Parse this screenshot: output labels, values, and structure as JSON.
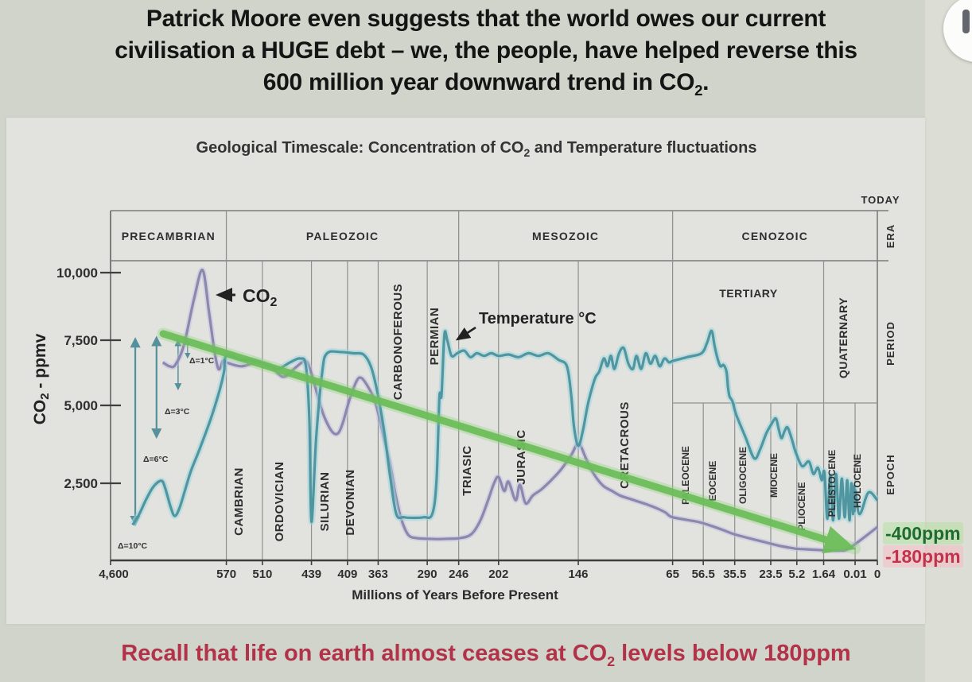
{
  "header": {
    "lines": [
      "Patrick Moore even suggests that the world owes our current",
      "civilisation a HUGE debt – we, the people, have helped reverse this"
    ],
    "line3": {
      "pre": "600 million year downward trend in CO",
      "sub": "2",
      "post": "."
    }
  },
  "chart": {
    "title": {
      "pre": "Geological Timescale: Concentration of CO",
      "sub": "2",
      "post": " and Temperature fluctuations"
    },
    "today_label": "TODAY",
    "side_labels": {
      "era": "ERA",
      "period": "PERIOD",
      "epoch": "EPOCH"
    },
    "y_axis": {
      "title": {
        "pre": "CO",
        "sub": "2",
        "post": " - ppmv"
      },
      "ticks": [
        "10,000",
        "7,500",
        "5,000",
        "2,500"
      ]
    },
    "x_axis": {
      "title": "Millions of Years Before Present",
      "ticks": [
        "4,600",
        "570",
        "510",
        "439",
        "409",
        "363",
        "290",
        "246",
        "202",
        "146",
        "65",
        "56.5",
        "35.5",
        "23.5",
        "5.2",
        "1.64",
        "0.01",
        "0"
      ]
    },
    "eras": [
      {
        "label": "PRECAMBRIAN",
        "from": 4600,
        "to": 570
      },
      {
        "label": "PALEOZOIC",
        "from": 570,
        "to": 246
      },
      {
        "label": "MESOZOIC",
        "from": 246,
        "to": 65
      },
      {
        "label": "CENOZOIC",
        "from": 65,
        "to": 0
      }
    ],
    "periods": [
      {
        "label": "CAMBRIAN",
        "from": 570,
        "to": 510
      },
      {
        "label": "ORDOVICIAN",
        "from": 510,
        "to": 439
      },
      {
        "label": "SILURIAN",
        "from": 439,
        "to": 409
      },
      {
        "label": "DEVONIAN",
        "from": 409,
        "to": 363
      },
      {
        "label": "CARBONOFEROUS",
        "from": 363,
        "to": 290
      },
      {
        "label": "PERMIAN",
        "from": 290,
        "to": 246
      },
      {
        "label": "TRIASIC",
        "from": 246,
        "to": 202
      },
      {
        "label": "JURASIC",
        "from": 202,
        "to": 146
      },
      {
        "label": "CRETACROUS",
        "from": 146,
        "to": 65
      },
      {
        "label": "TERTIARY",
        "from": 65,
        "to": 1.64
      },
      {
        "label": "QUATERNARY",
        "from": 1.64,
        "to": 0
      }
    ],
    "epochs": [
      {
        "label": "PALEOCENE",
        "from": 65,
        "to": 56.5
      },
      {
        "label": "EOCENE",
        "from": 56.5,
        "to": 35.5
      },
      {
        "label": "OLIGOCENE",
        "from": 35.5,
        "to": 23.5
      },
      {
        "label": "MIOCENE",
        "from": 23.5,
        "to": 5.2
      },
      {
        "label": "PLIOCENE",
        "from": 5.2,
        "to": 1.64
      },
      {
        "label": "PLEISTOCENE",
        "from": 1.64,
        "to": 0.01
      },
      {
        "label": "HOLOCENE",
        "from": 0.01,
        "to": 0
      }
    ],
    "annotations": {
      "co2_label": {
        "pre": "CO",
        "sub": "2"
      },
      "temp_label": "Temperature °C",
      "ppm_400": "-400ppm",
      "ppm_180": "-180ppm"
    }
  },
  "footer": {
    "pre": "Recall that life on earth almost ceases at CO",
    "sub": "2",
    "post": " levels below 180ppm"
  },
  "chart_data": {
    "type": "line",
    "title": "Geological Timescale: Concentration of CO2 and Temperature fluctuations",
    "xlabel": "Millions of Years Before Present",
    "ylabel": "CO2 - ppmv",
    "x_ticks_mya": [
      4600,
      570,
      510,
      439,
      409,
      363,
      290,
      246,
      202,
      146,
      65,
      56.5,
      35.5,
      23.5,
      5.2,
      1.64,
      0.01,
      0
    ],
    "y_ticks": [
      10000,
      7500,
      5000,
      2500
    ],
    "ylim": [
      0,
      10500
    ],
    "grid": "geological band boundaries",
    "legend_position": "inline labels",
    "series": [
      {
        "name": "CO2 (ppmv)",
        "color": "#8b88ae",
        "points": [
          [
            2780,
            6650
          ],
          [
            2550,
            6500
          ],
          [
            2350,
            6550
          ],
          [
            2050,
            7300
          ],
          [
            1700,
            9000
          ],
          [
            1400,
            10100
          ],
          [
            1180,
            8600
          ],
          [
            1000,
            7200
          ],
          [
            880,
            6500
          ],
          [
            800,
            6400
          ],
          [
            700,
            6700
          ],
          [
            620,
            6700
          ],
          [
            570,
            6650
          ],
          [
            545,
            6500
          ],
          [
            520,
            6650
          ],
          [
            500,
            6550
          ],
          [
            480,
            6100
          ],
          [
            462,
            6450
          ],
          [
            448,
            6700
          ],
          [
            440,
            6300
          ],
          [
            428,
            4600
          ],
          [
            417,
            4100
          ],
          [
            405,
            5300
          ],
          [
            395,
            5950
          ],
          [
            388,
            6050
          ],
          [
            378,
            5700
          ],
          [
            367,
            5100
          ],
          [
            355,
            4000
          ],
          [
            345,
            3100
          ],
          [
            337,
            2100
          ],
          [
            328,
            1300
          ],
          [
            318,
            820
          ],
          [
            305,
            720
          ],
          [
            290,
            700
          ],
          [
            275,
            690
          ],
          [
            260,
            700
          ],
          [
            245,
            720
          ],
          [
            232,
            850
          ],
          [
            222,
            1300
          ],
          [
            213,
            2000
          ],
          [
            207,
            2500
          ],
          [
            202,
            2700
          ],
          [
            198,
            2250
          ],
          [
            195,
            2550
          ],
          [
            190,
            1950
          ],
          [
            187,
            2450
          ],
          [
            183,
            1850
          ],
          [
            178,
            2100
          ],
          [
            172,
            2300
          ],
          [
            165,
            2600
          ],
          [
            158,
            2950
          ],
          [
            151,
            3400
          ],
          [
            147,
            3750
          ],
          [
            144,
            3700
          ],
          [
            140,
            3350
          ],
          [
            135,
            2950
          ],
          [
            130,
            2650
          ],
          [
            124,
            2400
          ],
          [
            117,
            2250
          ],
          [
            110,
            2100
          ],
          [
            102,
            2000
          ],
          [
            94,
            1900
          ],
          [
            86,
            1800
          ],
          [
            78,
            1680
          ],
          [
            71,
            1550
          ],
          [
            65,
            1400
          ],
          [
            58,
            1250
          ],
          [
            50,
            1100
          ],
          [
            43,
            980
          ],
          [
            36,
            850
          ],
          [
            30,
            700
          ],
          [
            25,
            580
          ],
          [
            20,
            500
          ],
          [
            15,
            450
          ],
          [
            10,
            410
          ],
          [
            6,
            380
          ],
          [
            4,
            360
          ],
          [
            2.5,
            340
          ],
          [
            1.5,
            325
          ],
          [
            0.8,
            320
          ],
          [
            0.3,
            400
          ],
          [
            0,
            1080
          ]
        ]
      },
      {
        "name": "Temperature °C (schematic, no numeric scale)",
        "color": "#4f96a1",
        "points": [
          [
            3830,
            1150
          ],
          [
            3600,
            1500
          ],
          [
            3350,
            2000
          ],
          [
            3100,
            2400
          ],
          [
            2830,
            2580
          ],
          [
            2700,
            2350
          ],
          [
            2500,
            1700
          ],
          [
            2360,
            1440
          ],
          [
            2200,
            1700
          ],
          [
            2000,
            2300
          ],
          [
            1800,
            2900
          ],
          [
            1500,
            3600
          ],
          [
            1100,
            4600
          ],
          [
            800,
            5600
          ],
          [
            650,
            6300
          ],
          [
            570,
            6900
          ],
          [
            545,
            6750
          ],
          [
            520,
            6700
          ],
          [
            500,
            6500
          ],
          [
            487,
            6400
          ],
          [
            470,
            6650
          ],
          [
            455,
            6800
          ],
          [
            447,
            6500
          ],
          [
            442,
            4500
          ],
          [
            439,
            1250
          ],
          [
            435,
            4000
          ],
          [
            430,
            6300
          ],
          [
            426,
            7000
          ],
          [
            415,
            7050
          ],
          [
            400,
            7000
          ],
          [
            385,
            6950
          ],
          [
            374,
            6500
          ],
          [
            365,
            5600
          ],
          [
            355,
            4300
          ],
          [
            345,
            2700
          ],
          [
            336,
            1500
          ],
          [
            325,
            1400
          ],
          [
            310,
            1380
          ],
          [
            295,
            1400
          ],
          [
            283,
            1500
          ],
          [
            277,
            2600
          ],
          [
            273,
            5300
          ],
          [
            270,
            5400
          ],
          [
            266,
            7700
          ],
          [
            262,
            7500
          ],
          [
            256,
            6900
          ],
          [
            248,
            7000
          ],
          [
            240,
            7100
          ],
          [
            233,
            6850
          ],
          [
            226,
            7000
          ],
          [
            218,
            6900
          ],
          [
            210,
            7000
          ],
          [
            202,
            6900
          ],
          [
            195,
            6950
          ],
          [
            188,
            6850
          ],
          [
            181,
            7000
          ],
          [
            174,
            6900
          ],
          [
            167,
            7000
          ],
          [
            160,
            6750
          ],
          [
            154,
            6500
          ],
          [
            151,
            5400
          ],
          [
            149,
            4300
          ],
          [
            146,
            3700
          ],
          [
            142,
            4200
          ],
          [
            138,
            5000
          ],
          [
            134,
            5700
          ],
          [
            131,
            6100
          ],
          [
            128,
            6300
          ],
          [
            124,
            6800
          ],
          [
            121,
            6500
          ],
          [
            118,
            6900
          ],
          [
            115,
            6400
          ],
          [
            111,
            7000
          ],
          [
            107,
            7200
          ],
          [
            103,
            6600
          ],
          [
            99,
            6400
          ],
          [
            96,
            6900
          ],
          [
            92,
            6400
          ],
          [
            88,
            7000
          ],
          [
            84,
            6600
          ],
          [
            80,
            6900
          ],
          [
            76,
            6500
          ],
          [
            72,
            6800
          ],
          [
            68,
            6650
          ],
          [
            65,
            6700
          ],
          [
            61,
            6850
          ],
          [
            57,
            7000
          ],
          [
            54,
            7400
          ],
          [
            51,
            7850
          ],
          [
            49,
            7300
          ],
          [
            47,
            6800
          ],
          [
            45,
            6500
          ],
          [
            43,
            6550
          ],
          [
            41,
            6300
          ],
          [
            40,
            5700
          ],
          [
            39,
            5350
          ],
          [
            37,
            5150
          ],
          [
            35,
            4700
          ],
          [
            32,
            4000
          ],
          [
            29,
            3300
          ],
          [
            27,
            3600
          ],
          [
            25,
            4100
          ],
          [
            23,
            4400
          ],
          [
            20,
            4580
          ],
          [
            18,
            4250
          ],
          [
            16,
            3950
          ],
          [
            14,
            4150
          ],
          [
            12,
            4300
          ],
          [
            10,
            4100
          ],
          [
            8,
            3800
          ],
          [
            6,
            3500
          ],
          [
            4.5,
            3050
          ],
          [
            3.6,
            3200
          ],
          [
            3,
            2800
          ],
          [
            2.4,
            3000
          ],
          [
            1.9,
            2600
          ],
          [
            1.6,
            2850
          ],
          [
            1.45,
            1350
          ],
          [
            1.3,
            2750
          ],
          [
            1.15,
            1300
          ],
          [
            1,
            2800
          ],
          [
            0.85,
            1350
          ],
          [
            0.7,
            2650
          ],
          [
            0.55,
            1400
          ],
          [
            0.42,
            2600
          ],
          [
            0.3,
            1300
          ],
          [
            0.2,
            2500
          ],
          [
            0.12,
            1500
          ],
          [
            0.07,
            2400
          ],
          [
            0.04,
            1600
          ],
          [
            0.02,
            2300
          ],
          [
            0.008,
            1500
          ],
          [
            0.004,
            2200
          ],
          [
            0,
            1950
          ]
        ]
      }
    ],
    "trend_arrow": {
      "color": "#6cbd5a",
      "from": [
        2770,
        7740
      ],
      "to": [
        0.02,
        385
      ]
    },
    "delta_arrows": [
      {
        "label": "Δ=10°C",
        "x_mya": 3740,
        "from_ppmv": 7550,
        "to_ppmv": 1160
      },
      {
        "label": "Δ=6°C",
        "x_mya": 3000,
        "from_ppmv": 7600,
        "to_ppmv": 3980
      },
      {
        "label": "Δ=3°C",
        "x_mya": 2250,
        "from_ppmv": 7500,
        "to_ppmv": 5620
      },
      {
        "label": "Δ=1°C",
        "x_mya": 1920,
        "from_ppmv": 7500,
        "to_ppmv": 6830
      }
    ],
    "end_labels": [
      {
        "text": "-400ppm",
        "color": "#1e6b2f"
      },
      {
        "text": "-180ppm",
        "color": "#c2334b"
      }
    ]
  }
}
